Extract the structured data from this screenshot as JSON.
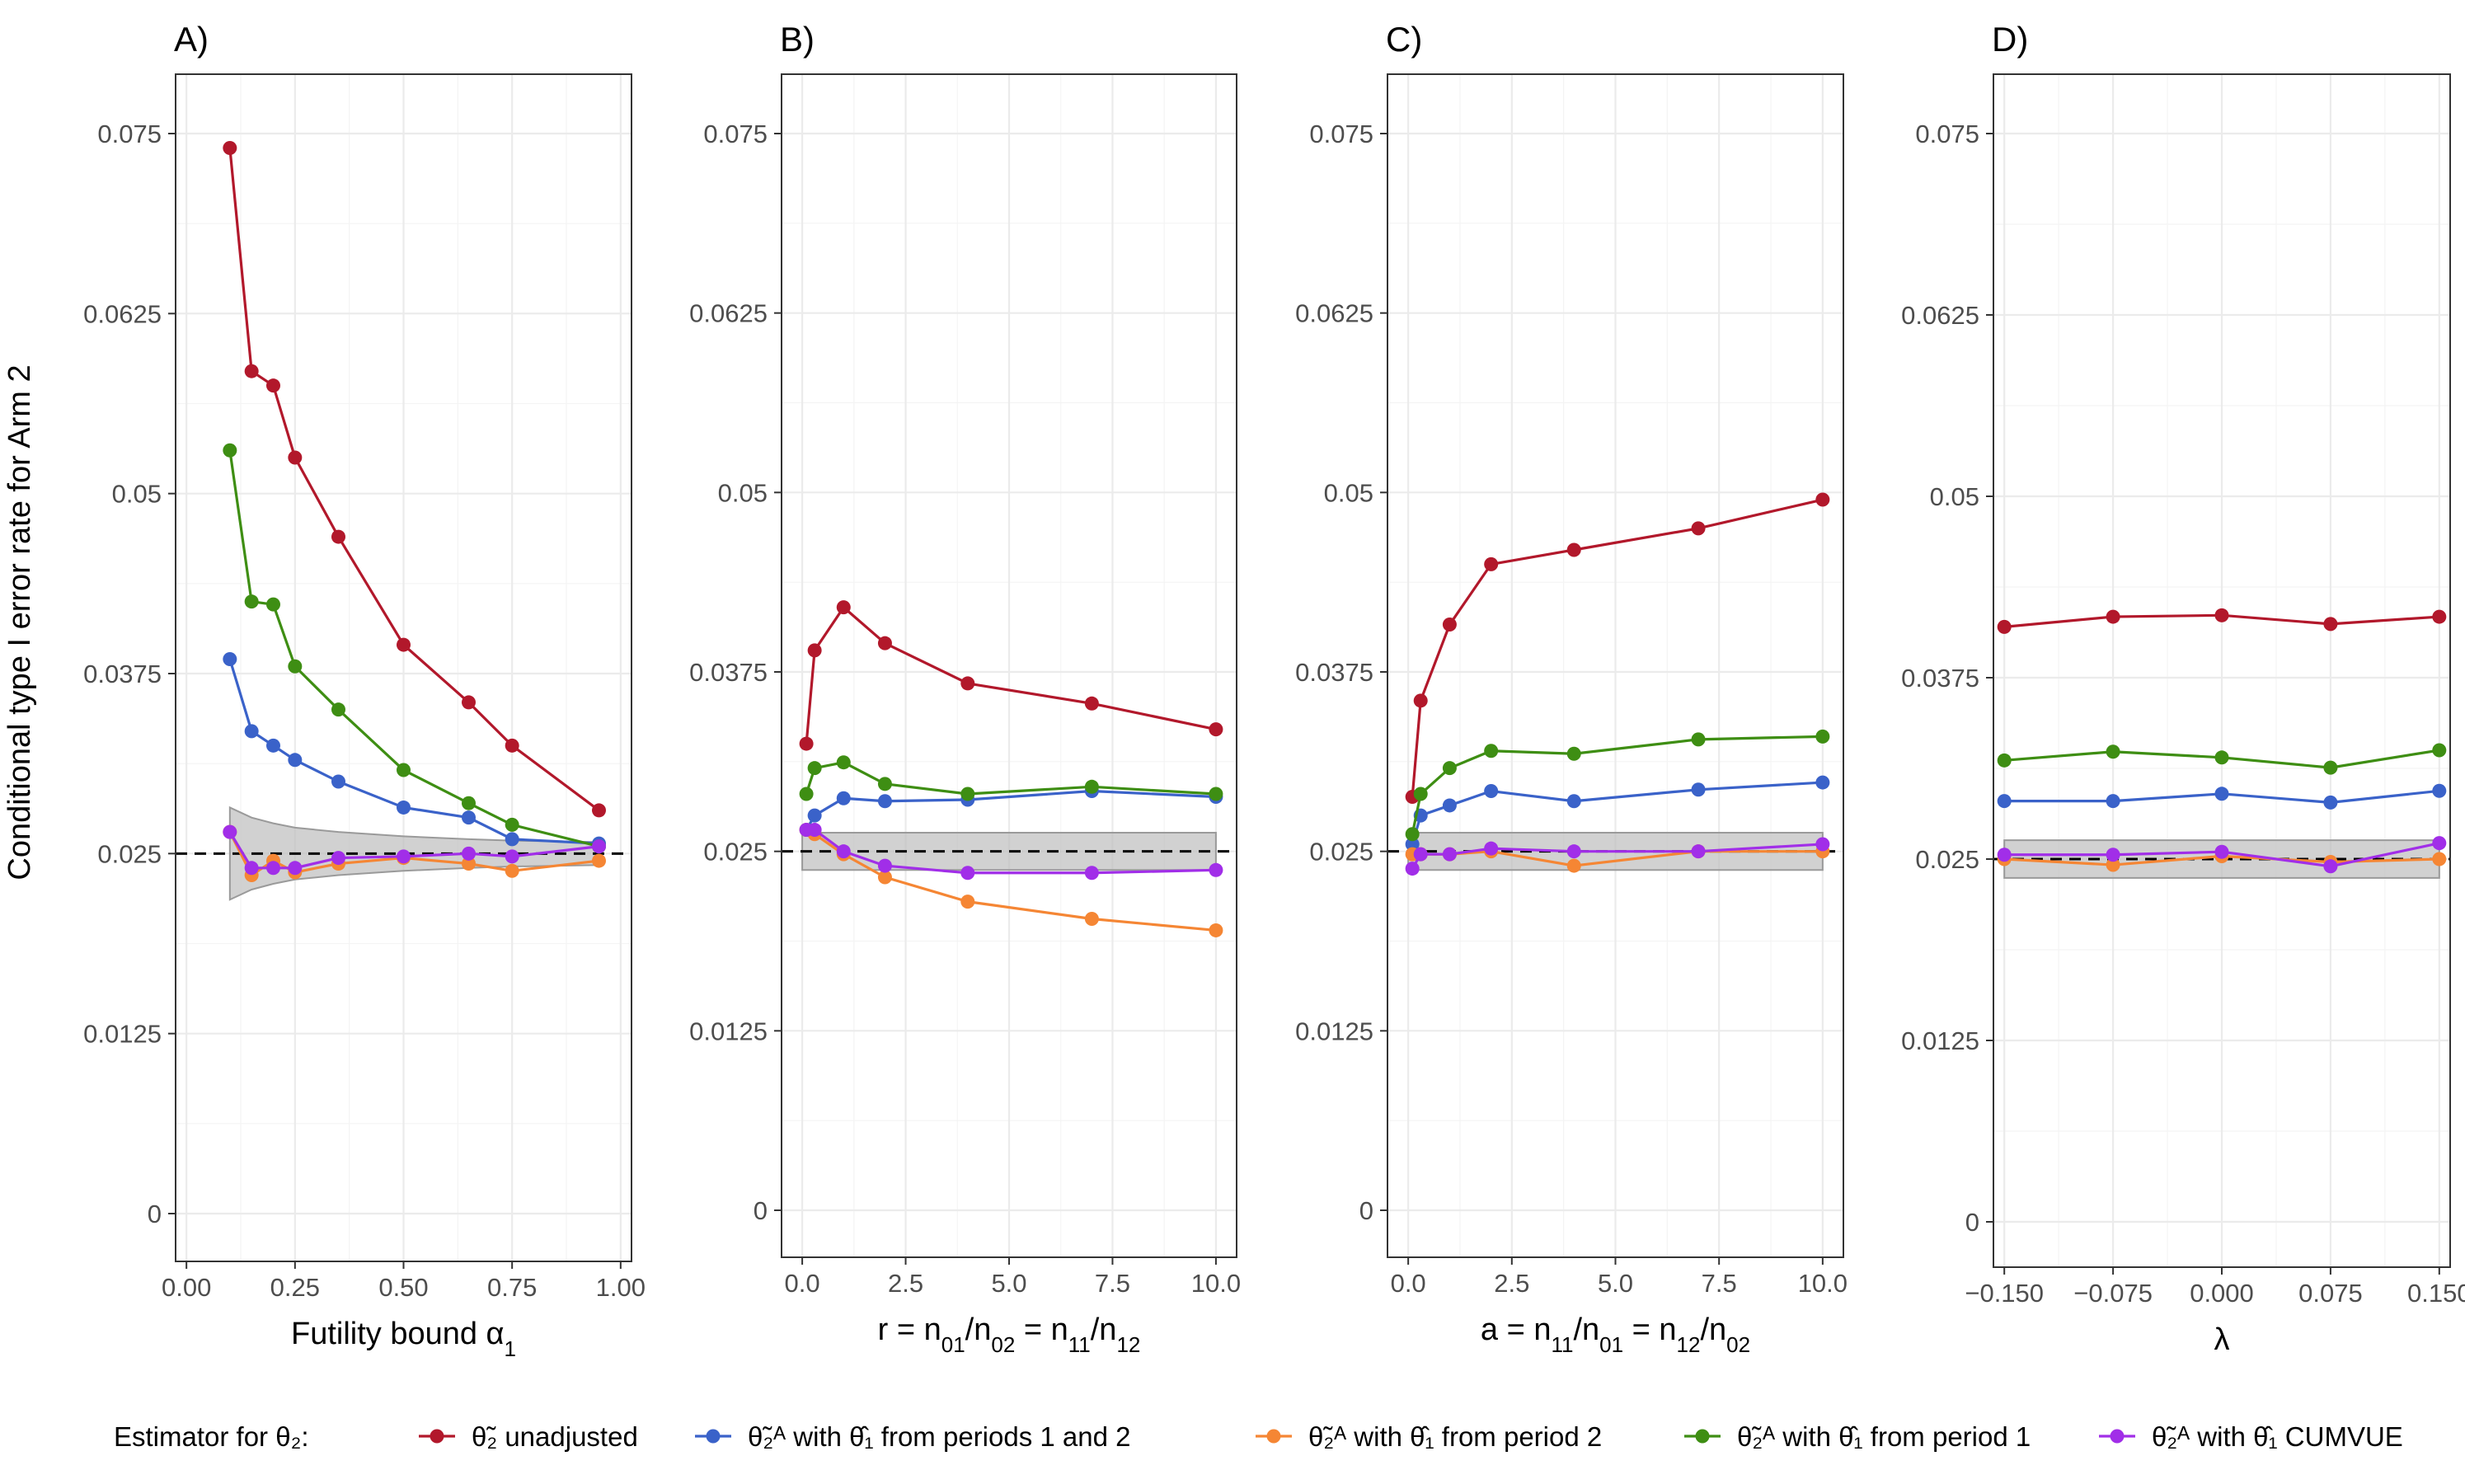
{
  "chart_data": {
    "type": "line",
    "ylabel": "Conditional type I error rate for Arm 2",
    "reference_line": 0.025,
    "yticks": [
      "0",
      "0.0125",
      "0.025",
      "0.0375",
      "0.05",
      "0.0625",
      "0.075"
    ],
    "legend": {
      "title": "Estimator for θ₂:",
      "entries": [
        {
          "name": "θ̃₂ unadjusted",
          "color": "#b2182b"
        },
        {
          "name": "θ̃₂ᴬ with θ̂₁ from periods 1 and 2",
          "color": "#3a62c9"
        },
        {
          "name": "θ̃₂ᴬ with θ̂₁ from period 2",
          "color": "#f58634"
        },
        {
          "name": "θ̃₂ᴬ with θ̂₁ from period 1",
          "color": "#3e8e13"
        },
        {
          "name": "θ̃₂ᴬ with θ̂₁ CUMVUE",
          "color": "#a12ee8"
        }
      ]
    },
    "panels": [
      {
        "label": "A)",
        "xlabel": "Futility bound α₁",
        "xlim": [
          -0.025,
          1.025
        ],
        "xticks": [
          0,
          0.25,
          0.5,
          0.75,
          1.0
        ],
        "xtick_labels": [
          "0.00",
          "0.25",
          "0.50",
          "0.75",
          "1.00"
        ],
        "x": [
          0.1,
          0.15,
          0.2,
          0.25,
          0.35,
          0.5,
          0.65,
          0.75,
          0.95
        ],
        "series": [
          {
            "values": [
              0.074,
              0.0585,
              0.0575,
              0.0525,
              0.047,
              0.0395,
              0.0355,
              0.0325,
              0.028
            ]
          },
          {
            "values": [
              0.0385,
              0.0335,
              0.0325,
              0.0315,
              0.03,
              0.0282,
              0.0275,
              0.026,
              0.0257
            ]
          },
          {
            "values": [
              0.0265,
              0.0235,
              0.0245,
              0.0237,
              0.0243,
              0.0247,
              0.0243,
              0.0238,
              0.0245
            ]
          },
          {
            "values": [
              0.053,
              0.0425,
              0.0423,
              0.038,
              0.035,
              0.0308,
              0.0285,
              0.027,
              0.0255
            ]
          },
          {
            "values": [
              0.0265,
              0.024,
              0.024,
              0.024,
              0.0247,
              0.0248,
              0.025,
              0.0248,
              0.0255
            ]
          }
        ],
        "band": {
          "x": [
            0.1,
            0.15,
            0.2,
            0.25,
            0.35,
            0.5,
            0.65,
            0.75,
            0.95
          ],
          "lower": [
            0.0218,
            0.0225,
            0.0229,
            0.0232,
            0.0235,
            0.0238,
            0.024,
            0.0241,
            0.0242
          ],
          "upper": [
            0.0282,
            0.0275,
            0.0271,
            0.0268,
            0.0265,
            0.0262,
            0.026,
            0.0259,
            0.0258
          ]
        }
      },
      {
        "label": "B)",
        "xlabel": "r = n₀₁/n₀₂ = n₁₁/n₁₂",
        "xlim": [
          -0.5,
          10.5
        ],
        "xticks": [
          0,
          2.5,
          5,
          7.5,
          10
        ],
        "xtick_labels": [
          "0.0",
          "2.5",
          "5.0",
          "7.5",
          "10.0"
        ],
        "x": [
          0.1,
          0.3,
          1,
          2,
          4,
          7,
          10
        ],
        "series": [
          {
            "values": [
              0.0325,
              0.039,
              0.042,
              0.0395,
              0.0367,
              0.0353,
              0.0335
            ]
          },
          {
            "values": [
              0.0265,
              0.0275,
              0.0287,
              0.0285,
              0.0286,
              0.0292,
              0.0288
            ]
          },
          {
            "values": [
              0.0265,
              0.0262,
              0.0248,
              0.0232,
              0.0215,
              0.0203,
              0.0195
            ]
          },
          {
            "values": [
              0.029,
              0.0308,
              0.0312,
              0.0297,
              0.029,
              0.0295,
              0.029
            ]
          },
          {
            "values": [
              0.0265,
              0.0265,
              0.025,
              0.024,
              0.0235,
              0.0235,
              0.0237
            ]
          }
        ],
        "band": {
          "x": [
            0,
            10
          ],
          "lower": [
            0.0237,
            0.0237
          ],
          "upper": [
            0.0263,
            0.0263
          ]
        }
      },
      {
        "label": "C)",
        "xlabel": "a = n₁₁/n₀₁ = n₁₂/n₀₂",
        "xlim": [
          -0.5,
          10.5
        ],
        "xticks": [
          0,
          2.5,
          5,
          7.5,
          10
        ],
        "xtick_labels": [
          "0.0",
          "2.5",
          "5.0",
          "7.5",
          "10.0"
        ],
        "x": [
          0.1,
          0.3,
          1,
          2,
          4,
          7,
          10
        ],
        "series": [
          {
            "values": [
              0.0288,
              0.0355,
              0.0408,
              0.045,
              0.046,
              0.0475,
              0.0495
            ]
          },
          {
            "values": [
              0.0255,
              0.0275,
              0.0282,
              0.0292,
              0.0285,
              0.0293,
              0.0298
            ]
          },
          {
            "values": [
              0.0248,
              0.0248,
              0.0248,
              0.025,
              0.024,
              0.025,
              0.025
            ]
          },
          {
            "values": [
              0.0262,
              0.029,
              0.0308,
              0.032,
              0.0318,
              0.0328,
              0.033
            ]
          },
          {
            "values": [
              0.0238,
              0.0248,
              0.0248,
              0.0252,
              0.025,
              0.025,
              0.0255
            ]
          }
        ],
        "band": {
          "x": [
            0,
            10
          ],
          "lower": [
            0.0237,
            0.0237
          ],
          "upper": [
            0.0263,
            0.0263
          ]
        }
      },
      {
        "label": "D)",
        "xlabel": "λ",
        "xlim": [
          -0.1575,
          0.1575
        ],
        "xticks": [
          -0.15,
          -0.075,
          0,
          0.075,
          0.15
        ],
        "xtick_labels": [
          "−0.150",
          "−0.075",
          "0.000",
          "0.075",
          "0.150"
        ],
        "x": [
          -0.15,
          -0.075,
          0,
          0.075,
          0.15
        ],
        "series": [
          {
            "values": [
              0.041,
              0.0417,
              0.0418,
              0.0412,
              0.0417
            ]
          },
          {
            "values": [
              0.029,
              0.029,
              0.0295,
              0.0289,
              0.0297
            ]
          },
          {
            "values": [
              0.025,
              0.0246,
              0.0252,
              0.0248,
              0.025
            ]
          },
          {
            "values": [
              0.0318,
              0.0324,
              0.032,
              0.0313,
              0.0325
            ]
          },
          {
            "values": [
              0.0253,
              0.0253,
              0.0255,
              0.0245,
              0.0261
            ]
          }
        ],
        "band": {
          "x": [
            -0.15,
            0.15
          ],
          "lower": [
            0.0237,
            0.0237
          ],
          "upper": [
            0.0263,
            0.0263
          ]
        }
      }
    ]
  }
}
